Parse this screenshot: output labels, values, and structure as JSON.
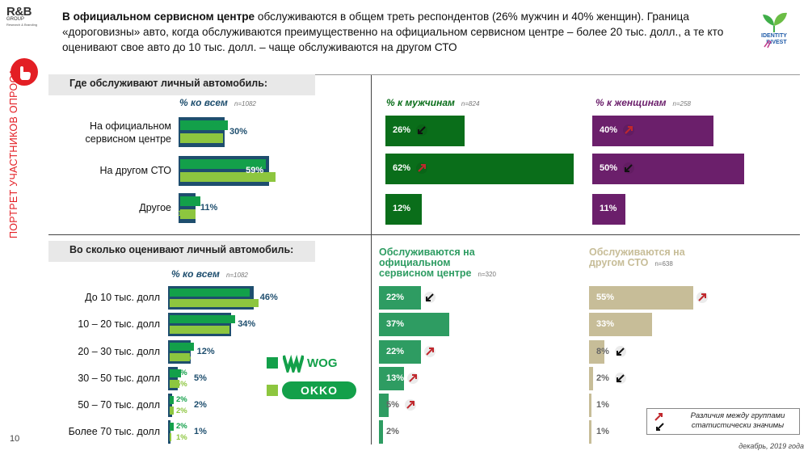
{
  "logo": {
    "brand": "R&B",
    "group": "GROUP",
    "tagline": "Research & Branding"
  },
  "identity_logo": {
    "line1": "IDENTITY",
    "line2": "INVEST"
  },
  "headline": {
    "bold": "В официальном сервисном центре",
    "rest": " обслуживаются в общем треть респондентов (26% мужчин и 40% женщин). Граница «дороговизны» авто, когда обслуживаются преимущественно на официальном сервисном центре – более 20 тыс. долл., а те кто оценивают свое авто до 10 тыс. долл. – чаще обслуживаются на другом СТО"
  },
  "side_title": "ПОРТРЕТ УЧАСТНИКОВ ОПРОСА",
  "page_number": "10",
  "date_note": "декабрь, 2019 года",
  "legend_note": "Различия между группами статистически значимы",
  "brands": {
    "wog": "WOG",
    "okko": "OKKO"
  },
  "colors": {
    "total": "#1e4e6e",
    "wog": "#13a04a",
    "okko": "#8dc63f",
    "men": "#0a6e1a",
    "women": "#6b1f6b",
    "official": "#2e9c62",
    "other_sto": "#c7bd98",
    "arrow_up": "#c0282d",
    "arrow_down": "#111111"
  },
  "chart_data": [
    {
      "type": "bar",
      "title": "Где обслуживают личный автомобиль:",
      "column_title": "% ко всем",
      "n": "n=1082",
      "categories": [
        "На официальном сервисном центре",
        "На другом СТО",
        "Другое"
      ],
      "series": [
        {
          "name": "% ко всем",
          "values": [
            30,
            59,
            11
          ]
        },
        {
          "name": "WOG",
          "values": [
            31,
            56,
            13
          ]
        },
        {
          "name": "OKKO",
          "values": [
            28,
            62,
            10
          ]
        }
      ],
      "xlim": [
        0,
        100
      ]
    },
    {
      "type": "bar",
      "title": "% к мужчинам",
      "n": "n=824",
      "categories": [
        "На официальном сервисном центре",
        "На другом СТО",
        "Другое"
      ],
      "values": [
        26,
        62,
        12
      ],
      "significance": [
        "down",
        "up",
        ""
      ],
      "xlim": [
        0,
        100
      ]
    },
    {
      "type": "bar",
      "title": "% к женщинам",
      "n": "n=258",
      "categories": [
        "На официальном сервисном центре",
        "На другом СТО",
        "Другое"
      ],
      "values": [
        40,
        50,
        11
      ],
      "significance": [
        "up",
        "down",
        ""
      ],
      "xlim": [
        0,
        100
      ]
    },
    {
      "type": "bar",
      "title": "Во сколько оценивают личный автомобиль:",
      "column_title": "% ко всем",
      "n": "n=1082",
      "categories": [
        "До 10 тыс. долл",
        "10 – 20 тыс. долл",
        "20 – 30 тыс. долл",
        "30 – 50 тыс. долл",
        "50 – 70 тыс. долл",
        "Более 70 тыс. долл"
      ],
      "series": [
        {
          "name": "% ко всем",
          "values": [
            46,
            34,
            12,
            5,
            2,
            1
          ]
        },
        {
          "name": "WOG",
          "values": [
            43,
            35,
            13,
            6,
            2,
            2
          ]
        },
        {
          "name": "OKKO",
          "values": [
            48,
            32,
            11,
            5,
            2,
            1
          ]
        }
      ],
      "xlim": [
        0,
        100
      ]
    },
    {
      "type": "bar",
      "title": "Обслуживаются на официальном сервисном центре",
      "n": "n=320",
      "categories": [
        "До 10 тыс. долл",
        "10 – 20 тыс. долл",
        "20 – 30 тыс. долл",
        "30 – 50 тыс. долл",
        "50 – 70 тыс. долл",
        "Более 70 тыс. долл"
      ],
      "values": [
        22,
        37,
        22,
        13,
        5,
        2
      ],
      "significance": [
        "down",
        "",
        "up",
        "up",
        "up",
        ""
      ],
      "xlim": [
        0,
        100
      ]
    },
    {
      "type": "bar",
      "title": "Обслуживаются на другом СТО",
      "n": "n=638",
      "categories": [
        "До 10 тыс. долл",
        "10 – 20 тыс. долл",
        "20 – 30 тыс. долл",
        "30 – 50 тыс. долл",
        "50 – 70 тыс. долл",
        "Более 70 тыс. долл"
      ],
      "values": [
        55,
        33,
        8,
        2,
        1,
        1
      ],
      "significance": [
        "up",
        "",
        "down",
        "down",
        "",
        ""
      ],
      "xlim": [
        0,
        100
      ]
    }
  ]
}
